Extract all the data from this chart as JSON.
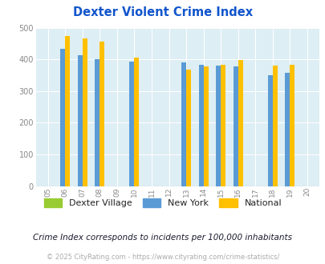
{
  "title": "Dexter Violent Crime Index",
  "years": [
    2005,
    2006,
    2007,
    2008,
    2009,
    2010,
    2011,
    2012,
    2013,
    2014,
    2015,
    2016,
    2017,
    2018,
    2019,
    2020
  ],
  "dexter_village": [
    null,
    null,
    null,
    null,
    null,
    null,
    null,
    null,
    null,
    null,
    null,
    null,
    null,
    null,
    null,
    null
  ],
  "new_york": [
    null,
    433,
    413,
    400,
    null,
    393,
    null,
    null,
    391,
    383,
    381,
    377,
    null,
    350,
    357,
    null
  ],
  "national": [
    null,
    474,
    467,
    455,
    null,
    405,
    null,
    null,
    367,
    377,
    383,
    398,
    null,
    381,
    382,
    null
  ],
  "color_dexter": "#99cc33",
  "color_newyork": "#5b9bd5",
  "color_national": "#ffc000",
  "bg_color": "#ddeef4",
  "ylim": [
    0,
    500
  ],
  "yticks": [
    0,
    100,
    200,
    300,
    400,
    500
  ],
  "legend_labels": [
    "Dexter Village",
    "New York",
    "National"
  ],
  "footnote1": "Crime Index corresponds to incidents per 100,000 inhabitants",
  "footnote2": "© 2025 CityRating.com - https://www.cityrating.com/crime-statistics/",
  "bar_width": 0.28,
  "title_color": "#1155cc",
  "footnote1_color": "#1a1a2e",
  "footnote2_color": "#aaaaaa",
  "tick_label_color": "#888888"
}
